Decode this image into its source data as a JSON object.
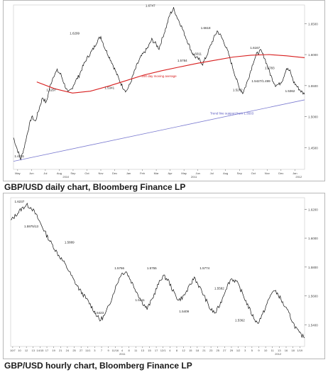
{
  "captions": {
    "top": "GBP/USD daily chart, Bloomberg Finance LP",
    "bottom": "GBP/USD hourly chart, Bloomberg Finance LP"
  },
  "colors": {
    "price": "#111111",
    "ma": "#d81e1e",
    "trend": "#7a7ad0",
    "ma_label": "#d81e1e",
    "trend_label": "#5a5ac0"
  },
  "chart_data": [
    {
      "type": "line",
      "caption": "GBP/USD daily chart, Bloomberg Finance LP",
      "ylim": [
        1.415,
        1.68
      ],
      "y_ticks": [
        1.45,
        1.5,
        1.55,
        1.6,
        1.65
      ],
      "y_tick_labels": [
        "1.4500",
        "1.5000",
        "1.5500",
        "1.6000",
        "1.6500"
      ],
      "x_month_labels": [
        "May",
        "Jun",
        "Jul",
        "Aug",
        "Sep",
        "Oct",
        "Nov",
        "Dec",
        "Jan",
        "Feb",
        "Mar",
        "Apr",
        "May",
        "Jun",
        "Jul",
        "Aug",
        "Sep",
        "Oct",
        "Nov",
        "Dec",
        "Jan"
      ],
      "x_year_labels": [
        "2010",
        "2011",
        "2012"
      ],
      "series": [
        {
          "name": "",
          "values": [
            1.466,
            1.448,
            1.431,
            1.452,
            1.478,
            1.5,
            1.492,
            1.512,
            1.531,
            1.522,
            1.548,
            1.566,
            1.574,
            1.568,
            1.552,
            1.538,
            1.545,
            1.557,
            1.566,
            1.58,
            1.592,
            1.601,
            1.61,
            1.622,
            1.629,
            1.612,
            1.6,
            1.588,
            1.574,
            1.56,
            1.548,
            1.541,
            1.552,
            1.569,
            1.584,
            1.596,
            1.604,
            1.612,
            1.624,
            1.618,
            1.61,
            1.628,
            1.645,
            1.665,
            1.674,
            1.66,
            1.648,
            1.633,
            1.619,
            1.604,
            1.596,
            1.592,
            1.585,
            1.597,
            1.612,
            1.626,
            1.638,
            1.63,
            1.618,
            1.603,
            1.584,
            1.565,
            1.547,
            1.538,
            1.552,
            1.57,
            1.59,
            1.602,
            1.606,
            1.595,
            1.578,
            1.562,
            1.551,
            1.552,
            1.56,
            1.578,
            1.573,
            1.556,
            1.548,
            1.541,
            1.536
          ]
        },
        {
          "name": "200 day moving average",
          "values": [
            1.556,
            1.545,
            1.538,
            1.541,
            1.549,
            1.558,
            1.567,
            1.574,
            1.58,
            1.586,
            1.591,
            1.596,
            1.599,
            1.6,
            1.598,
            1.595
          ]
        },
        {
          "name": "Trend line support from 1.3503",
          "values": [
            1.428,
            1.527
          ]
        }
      ],
      "annotations": [
        {
          "text": "1.4231",
          "x": 0.02,
          "y": 1.431
        },
        {
          "text": "1.5297",
          "x": 0.13,
          "y": 1.538
        },
        {
          "text": "1.6299",
          "x": 0.21,
          "y": 1.629
        },
        {
          "text": "1.5341",
          "x": 0.33,
          "y": 1.541
        },
        {
          "text": "1.6747",
          "x": 0.47,
          "y": 1.674
        },
        {
          "text": "1.5784",
          "x": 0.58,
          "y": 1.585
        },
        {
          "text": "1.6011",
          "x": 0.63,
          "y": 1.596
        },
        {
          "text": "1.6618",
          "x": 0.66,
          "y": 1.638
        },
        {
          "text": "1.5272",
          "x": 0.77,
          "y": 1.538
        },
        {
          "text": "1.6167",
          "x": 0.83,
          "y": 1.606
        },
        {
          "text": "1.5783",
          "x": 0.88,
          "y": 1.573
        },
        {
          "text": "1.5427/1.499",
          "x": 0.85,
          "y": 1.552
        },
        {
          "text": "1.5362",
          "x": 0.95,
          "y": 1.536
        },
        {
          "text": "200 day moving average",
          "x": 0.5,
          "y": 1.56
        },
        {
          "text": "Trend line support from 1.3503",
          "x": 0.75,
          "y": 1.5
        }
      ],
      "grid": false
    },
    {
      "type": "line",
      "caption": "GBP/USD hourly chart, Bloomberg Finance LP",
      "ylim": [
        1.525,
        1.628
      ],
      "y_ticks": [
        1.54,
        1.56,
        1.58,
        1.6,
        1.62
      ],
      "y_tick_labels": [
        "1.5400",
        "1.5600",
        "1.5800",
        "1.6000",
        "1.6200"
      ],
      "x_tick_labels": [
        "10/7",
        "10",
        "12",
        "13",
        "14/15",
        "17",
        "19",
        "21",
        "24",
        "25",
        "27",
        "11/1",
        "3",
        "7",
        "9",
        "11/16",
        "4",
        "8",
        "11",
        "13",
        "15",
        "17",
        "12/1",
        "4",
        "8",
        "12",
        "15",
        "18",
        "21",
        "23",
        "25",
        "27",
        "29",
        "1/2",
        "3",
        "5",
        "9",
        "10",
        "11",
        "13",
        "16",
        "18",
        "1/19"
      ],
      "x_year_labels": [
        "2011",
        "2012"
      ],
      "series": [
        {
          "name": "",
          "values": [
            1.612,
            1.616,
            1.62,
            1.623,
            1.621,
            1.615,
            1.608,
            1.601,
            1.595,
            1.589,
            1.584,
            1.578,
            1.571,
            1.565,
            1.56,
            1.555,
            1.549,
            1.543,
            1.547,
            1.556,
            1.566,
            1.575,
            1.577,
            1.57,
            1.563,
            1.556,
            1.551,
            1.558,
            1.567,
            1.574,
            1.571,
            1.563,
            1.557,
            1.56,
            1.566,
            1.573,
            1.566,
            1.559,
            1.551,
            1.548,
            1.555,
            1.565,
            1.572,
            1.57,
            1.563,
            1.555,
            1.547,
            1.541,
            1.547,
            1.556,
            1.564,
            1.561,
            1.554,
            1.548,
            1.54,
            1.534,
            1.531
          ]
        }
      ],
      "annotations": [
        {
          "text": "1.6237",
          "x": 0.03,
          "y": 1.623
        },
        {
          "text": "1.5975/13",
          "x": 0.07,
          "y": 1.606
        },
        {
          "text": "1.5889",
          "x": 0.2,
          "y": 1.595
        },
        {
          "text": "1.5423",
          "x": 0.3,
          "y": 1.546
        },
        {
          "text": "1.5766",
          "x": 0.37,
          "y": 1.577
        },
        {
          "text": "1.5411",
          "x": 0.44,
          "y": 1.555
        },
        {
          "text": "1.5755",
          "x": 0.48,
          "y": 1.577
        },
        {
          "text": "1.5409",
          "x": 0.59,
          "y": 1.547
        },
        {
          "text": "1.5774",
          "x": 0.66,
          "y": 1.577
        },
        {
          "text": "1.5582",
          "x": 0.71,
          "y": 1.563
        },
        {
          "text": "1.5362",
          "x": 0.78,
          "y": 1.541
        }
      ],
      "grid": false
    }
  ]
}
